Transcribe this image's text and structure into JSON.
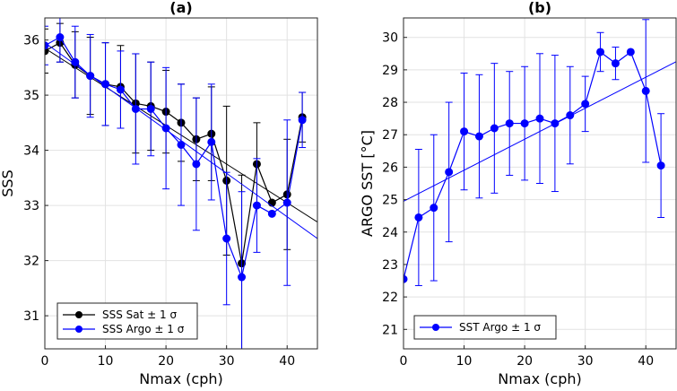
{
  "chart_data": [
    {
      "type": "line",
      "title": "(a)",
      "xlabel": "Nmax (cph)",
      "ylabel": "SSS",
      "xlim": [
        0,
        45
      ],
      "ylim": [
        30.4,
        36.4
      ],
      "xticks": [
        0,
        10,
        20,
        30,
        40
      ],
      "yticks": [
        31,
        32,
        33,
        34,
        35,
        36
      ],
      "grid": true,
      "legend_position": "bottom-left",
      "series": [
        {
          "name": "SSS Sat ± 1 σ",
          "color": "#000000",
          "x": [
            0,
            2.5,
            5,
            7.5,
            10,
            12.5,
            15,
            17.5,
            20,
            22.5,
            25,
            27.5,
            30,
            32.5,
            35,
            37.5,
            40,
            42.5
          ],
          "y": [
            35.8,
            35.95,
            35.55,
            35.35,
            35.2,
            35.15,
            34.85,
            34.8,
            34.7,
            34.5,
            34.2,
            34.3,
            33.45,
            31.95,
            33.75,
            33.05,
            33.2,
            34.6
          ],
          "error": [
            0.4,
            0.35,
            0.6,
            0.7,
            0.75,
            0.75,
            0.9,
            0.8,
            0.75,
            0.7,
            0.75,
            0.85,
            1.35,
            1.6,
            0.75,
            0.0,
            1.0,
            0.45
          ],
          "fit_line": {
            "x": [
              0,
              45
            ],
            "y": [
              35.85,
              32.7
            ]
          }
        },
        {
          "name": "SSS Argo ± 1 σ",
          "color": "#0000ff",
          "x": [
            0,
            2.5,
            5,
            7.5,
            10,
            12.5,
            15,
            17.5,
            20,
            22.5,
            25,
            27.5,
            30,
            32.5,
            35,
            37.5,
            40,
            42.5
          ],
          "y": [
            35.9,
            36.05,
            35.6,
            35.35,
            35.2,
            35.1,
            34.75,
            34.75,
            34.4,
            34.1,
            33.75,
            34.15,
            32.4,
            31.7,
            33.0,
            32.85,
            33.05,
            34.55
          ],
          "error": [
            0.35,
            0.45,
            0.65,
            0.75,
            0.75,
            0.7,
            1.0,
            0.85,
            1.1,
            1.1,
            1.2,
            1.05,
            1.2,
            1.55,
            0.85,
            0.0,
            1.5,
            0.5
          ],
          "fit_line": {
            "x": [
              0,
              45
            ],
            "y": [
              35.95,
              32.4
            ]
          }
        }
      ]
    },
    {
      "type": "line",
      "title": "(b)",
      "xlabel": "Nmax (cph)",
      "ylabel": "ARGO SST [°C]",
      "xlim": [
        0,
        45
      ],
      "ylim": [
        20.4,
        30.6
      ],
      "xticks": [
        0,
        10,
        20,
        30,
        40
      ],
      "yticks": [
        21,
        22,
        23,
        24,
        25,
        26,
        27,
        28,
        29,
        30
      ],
      "grid": true,
      "legend_position": "bottom-left",
      "series": [
        {
          "name": "SST Argo ± 1 σ",
          "color": "#0000ff",
          "x": [
            0,
            2.5,
            5,
            7.5,
            10,
            12.5,
            15,
            17.5,
            20,
            22.5,
            25,
            27.5,
            30,
            32.5,
            35,
            37.5,
            40,
            42.5
          ],
          "y": [
            22.55,
            24.45,
            24.75,
            25.85,
            27.1,
            26.95,
            27.2,
            27.35,
            27.35,
            27.5,
            27.35,
            27.6,
            27.95,
            29.55,
            29.2,
            29.55,
            28.35,
            26.05
          ],
          "error": [
            0.0,
            2.1,
            2.25,
            2.15,
            1.8,
            1.9,
            2.0,
            1.6,
            1.75,
            2.0,
            2.1,
            1.5,
            0.85,
            0.6,
            0.5,
            0.0,
            2.2,
            1.6
          ],
          "fit_line": {
            "x": [
              0,
              45
            ],
            "y": [
              24.95,
              29.25
            ]
          }
        }
      ]
    }
  ]
}
